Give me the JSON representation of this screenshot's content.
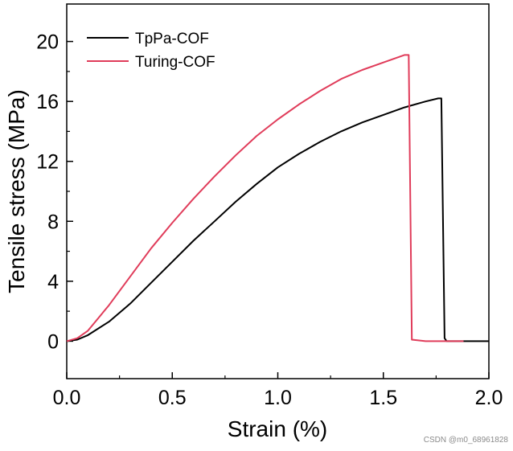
{
  "chart_data": {
    "type": "line",
    "title": "",
    "xlabel": "Strain (%)",
    "ylabel": "Tensile stress (MPa)",
    "xlim": [
      0.0,
      2.0
    ],
    "ylim": [
      -2.5,
      22.5
    ],
    "xticks": [
      0.0,
      0.5,
      1.0,
      1.5,
      2.0
    ],
    "xtick_labels": [
      "0.0",
      "0.5",
      "1.0",
      "1.5",
      "2.0"
    ],
    "yticks": [
      0,
      4,
      8,
      12,
      16,
      20
    ],
    "ytick_labels": [
      "0",
      "4",
      "8",
      "12",
      "16",
      "20"
    ],
    "grid": false,
    "legend_position": "top-left",
    "series": [
      {
        "name": "TpPa-COF",
        "color": "#000000",
        "x": [
          0.0,
          0.05,
          0.1,
          0.2,
          0.3,
          0.4,
          0.5,
          0.6,
          0.7,
          0.8,
          0.9,
          1.0,
          1.1,
          1.2,
          1.3,
          1.4,
          1.5,
          1.6,
          1.7,
          1.76,
          1.775,
          1.79,
          1.8,
          2.0
        ],
        "y": [
          0.0,
          0.1,
          0.4,
          1.3,
          2.5,
          3.9,
          5.3,
          6.7,
          8.0,
          9.3,
          10.5,
          11.6,
          12.5,
          13.3,
          14.0,
          14.6,
          15.1,
          15.6,
          16.0,
          16.2,
          16.2,
          0.2,
          0.0,
          0.0
        ]
      },
      {
        "name": "Turing-COF",
        "color": "#e03c5a",
        "x": [
          0.0,
          0.05,
          0.1,
          0.2,
          0.3,
          0.4,
          0.5,
          0.6,
          0.7,
          0.8,
          0.9,
          1.0,
          1.1,
          1.2,
          1.3,
          1.4,
          1.5,
          1.6,
          1.62,
          1.635,
          1.7,
          1.88
        ],
        "y": [
          0.0,
          0.2,
          0.7,
          2.4,
          4.3,
          6.2,
          7.9,
          9.5,
          11.0,
          12.4,
          13.7,
          14.8,
          15.8,
          16.7,
          17.5,
          18.1,
          18.6,
          19.1,
          19.1,
          0.1,
          0.0,
          0.0
        ]
      }
    ]
  },
  "watermark": "CSDN @m0_68961828"
}
